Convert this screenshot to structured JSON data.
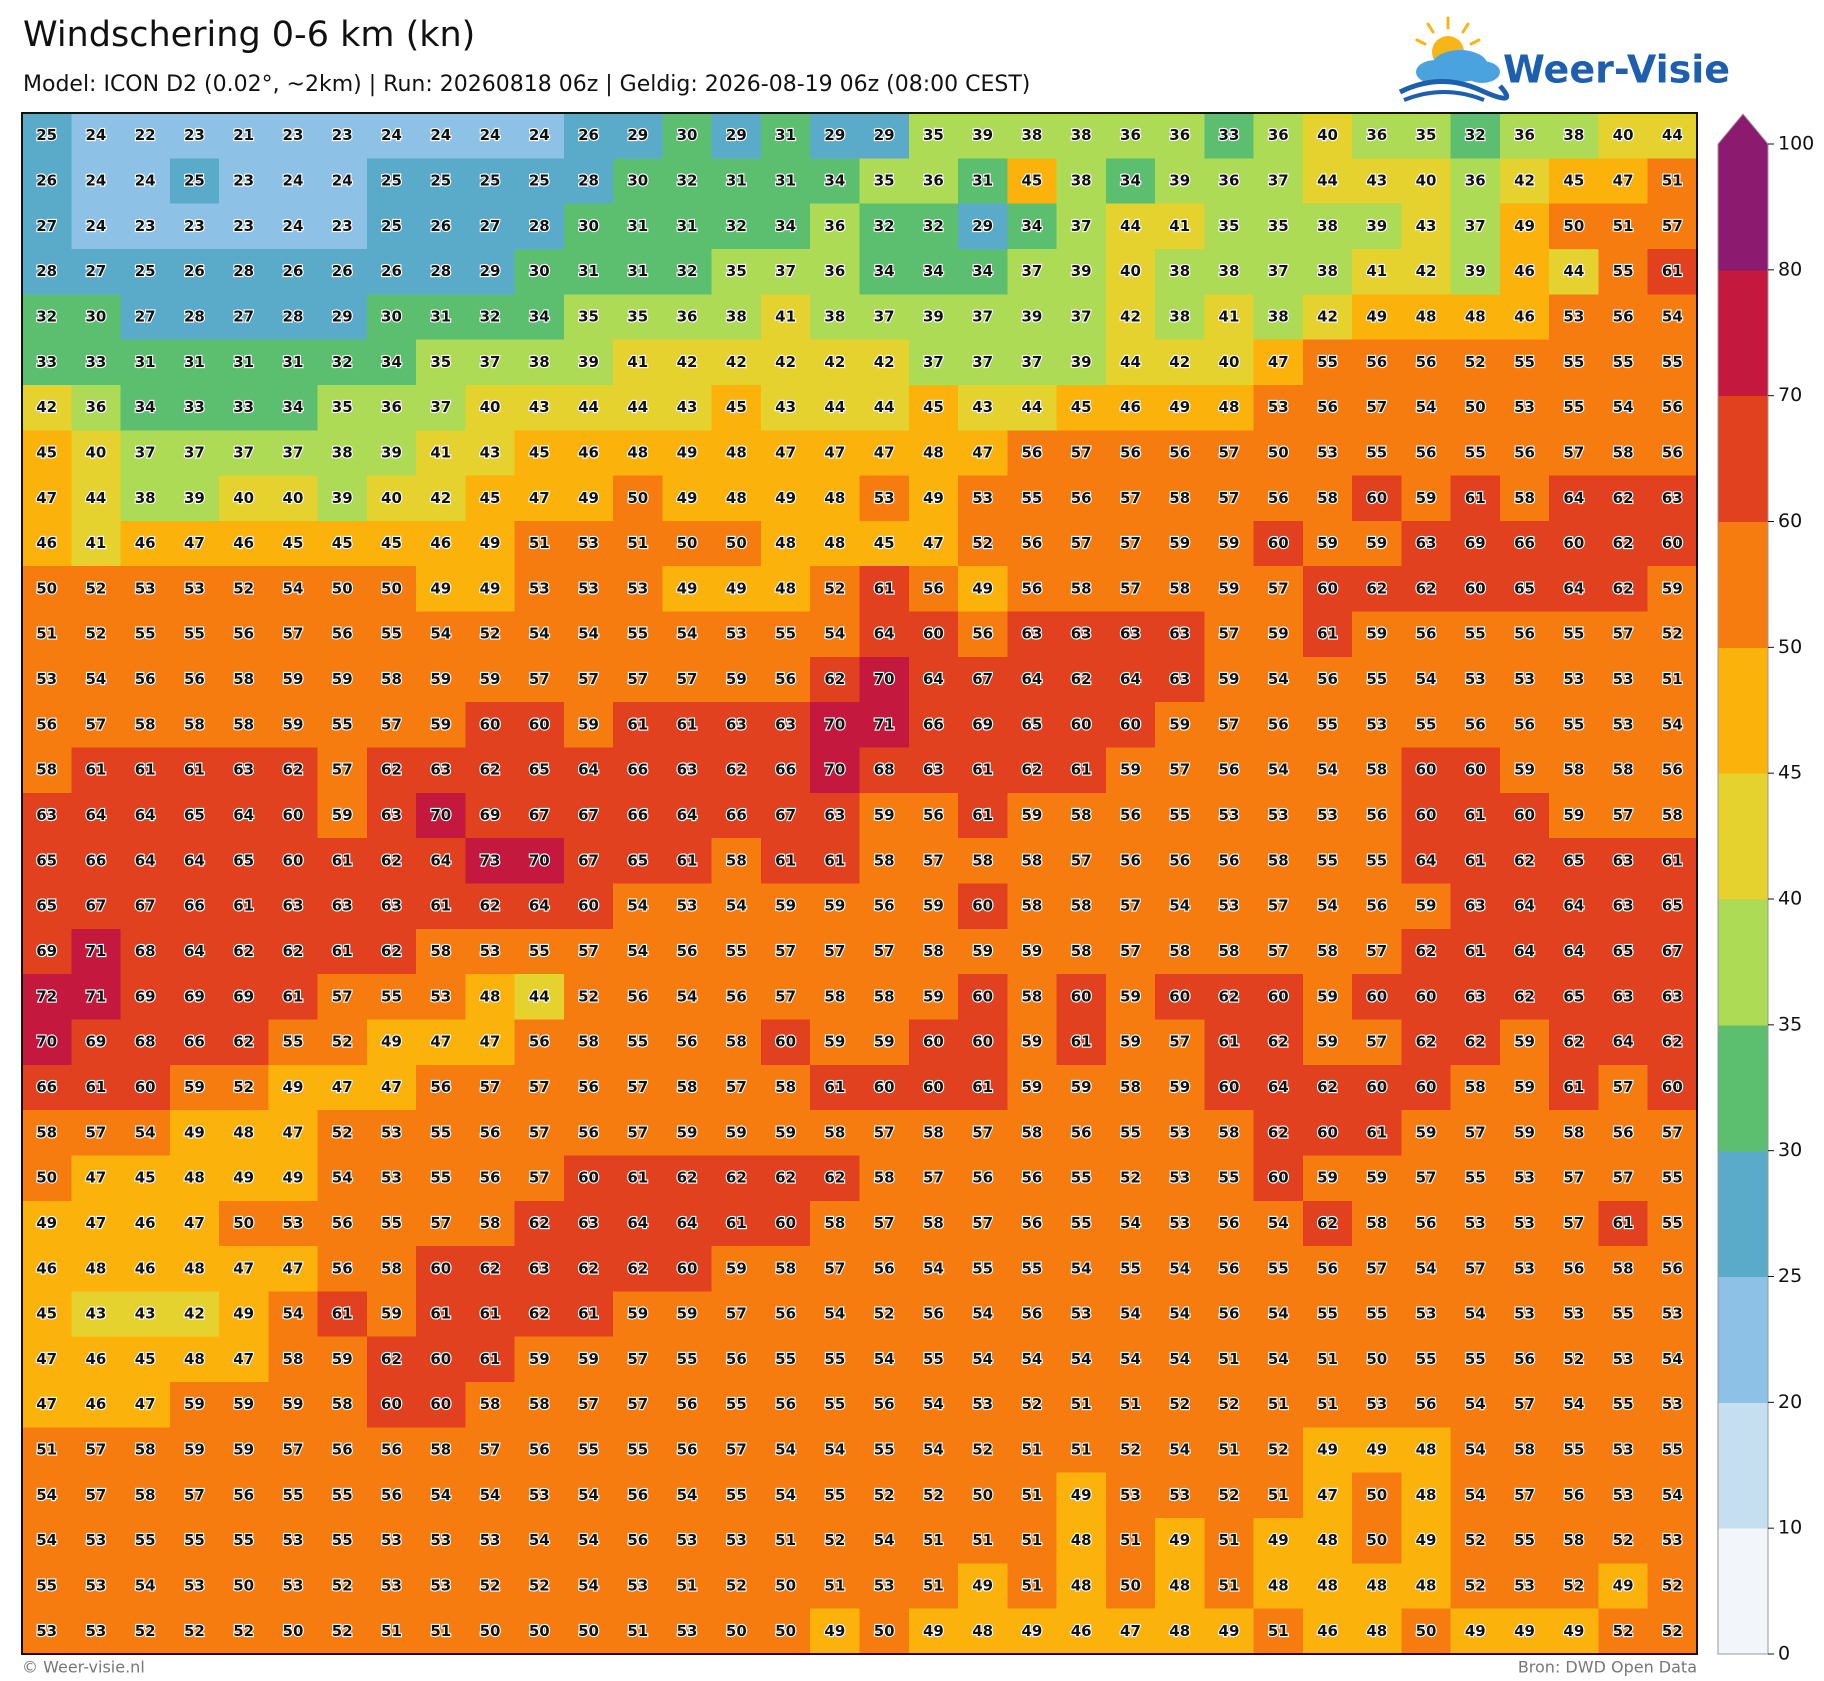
{
  "title": "Windschering 0-6 km (kn)",
  "subtitle": "Model: ICON D2 (0.02°, ~2km)  |  Run: 20260818 06z  |  Geldig: 2026-08-19 06z (08:00 CEST)",
  "logo": {
    "text": "Weer-Visie"
  },
  "footer": {
    "left": "© Weer-visie.nl",
    "right": "Bron: DWD Open Data"
  },
  "colorbar": {
    "ticks": [
      0,
      10,
      20,
      25,
      30,
      35,
      40,
      45,
      50,
      60,
      70,
      80,
      100
    ],
    "colors": [
      "#f2f5f9",
      "#c5dff0",
      "#8dc2e6",
      "#5aaac9",
      "#5cbf70",
      "#addb55",
      "#e5d22f",
      "#fbb30c",
      "#f77c0f",
      "#e2411f",
      "#c4183f",
      "#8c1a6e"
    ],
    "extend": "max"
  },
  "grid": {
    "rows": [
      [
        25,
        24,
        22,
        23,
        21,
        23,
        23,
        24,
        24,
        24,
        24,
        26,
        29,
        30,
        29,
        31,
        29,
        29,
        35,
        39,
        38,
        38,
        36,
        36,
        33,
        36,
        40,
        36,
        35,
        32,
        36,
        38,
        40,
        44
      ],
      [
        26,
        24,
        24,
        25,
        23,
        24,
        24,
        25,
        25,
        25,
        25,
        28,
        30,
        32,
        31,
        31,
        34,
        35,
        36,
        31,
        45,
        38,
        34,
        39,
        36,
        37,
        44,
        43,
        40,
        36,
        42,
        45,
        47,
        51
      ],
      [
        27,
        24,
        23,
        23,
        23,
        24,
        23,
        25,
        26,
        27,
        28,
        30,
        31,
        31,
        32,
        34,
        36,
        32,
        32,
        29,
        34,
        37,
        44,
        41,
        35,
        35,
        38,
        39,
        43,
        37,
        49,
        50,
        51,
        57
      ],
      [
        28,
        27,
        25,
        26,
        28,
        26,
        26,
        26,
        28,
        29,
        30,
        31,
        31,
        32,
        35,
        37,
        36,
        34,
        34,
        34,
        37,
        39,
        40,
        38,
        38,
        37,
        38,
        41,
        42,
        39,
        46,
        44,
        55,
        61
      ],
      [
        32,
        30,
        27,
        28,
        27,
        28,
        29,
        30,
        31,
        32,
        34,
        35,
        35,
        36,
        38,
        41,
        38,
        37,
        39,
        37,
        39,
        37,
        42,
        38,
        41,
        38,
        42,
        49,
        48,
        48,
        46,
        53,
        56,
        54
      ],
      [
        33,
        33,
        31,
        31,
        31,
        31,
        32,
        34,
        35,
        37,
        38,
        39,
        41,
        42,
        42,
        42,
        42,
        42,
        37,
        37,
        37,
        39,
        44,
        42,
        40,
        47,
        55,
        56,
        56,
        52,
        55,
        55,
        55,
        55
      ],
      [
        42,
        36,
        34,
        33,
        33,
        34,
        35,
        36,
        37,
        40,
        43,
        44,
        44,
        43,
        45,
        43,
        44,
        44,
        45,
        43,
        44,
        45,
        46,
        49,
        48,
        53,
        56,
        57,
        54,
        50,
        53,
        55,
        54,
        56
      ],
      [
        45,
        40,
        37,
        37,
        37,
        37,
        38,
        39,
        41,
        43,
        45,
        46,
        48,
        49,
        48,
        47,
        47,
        47,
        48,
        47,
        56,
        57,
        56,
        56,
        57,
        50,
        53,
        55,
        56,
        55,
        56,
        57,
        58,
        56
      ],
      [
        47,
        44,
        38,
        39,
        40,
        40,
        39,
        40,
        42,
        45,
        47,
        49,
        50,
        49,
        48,
        49,
        48,
        53,
        49,
        53,
        55,
        56,
        57,
        58,
        57,
        56,
        58,
        60,
        59,
        61,
        58,
        64,
        62,
        63
      ],
      [
        46,
        41,
        46,
        47,
        46,
        45,
        45,
        45,
        46,
        49,
        51,
        53,
        51,
        50,
        50,
        48,
        48,
        45,
        47,
        52,
        56,
        57,
        57,
        59,
        59,
        60,
        59,
        59,
        63,
        69,
        66,
        60,
        62,
        60
      ],
      [
        50,
        52,
        53,
        53,
        52,
        54,
        50,
        50,
        49,
        49,
        53,
        53,
        53,
        49,
        49,
        48,
        52,
        61,
        56,
        49,
        56,
        58,
        57,
        58,
        59,
        57,
        60,
        62,
        62,
        60,
        65,
        64,
        62,
        59
      ],
      [
        51,
        52,
        55,
        55,
        56,
        57,
        56,
        55,
        54,
        52,
        54,
        54,
        55,
        54,
        53,
        55,
        54,
        64,
        60,
        56,
        63,
        63,
        63,
        63,
        57,
        59,
        61,
        59,
        56,
        55,
        56,
        55,
        57,
        52
      ],
      [
        53,
        54,
        56,
        56,
        58,
        59,
        59,
        58,
        59,
        59,
        57,
        57,
        57,
        57,
        59,
        56,
        62,
        70,
        64,
        67,
        64,
        62,
        64,
        63,
        59,
        54,
        56,
        55,
        54,
        53,
        53,
        53,
        53,
        51
      ],
      [
        56,
        57,
        58,
        58,
        58,
        59,
        55,
        57,
        59,
        60,
        60,
        59,
        61,
        61,
        63,
        63,
        70,
        71,
        66,
        69,
        65,
        60,
        60,
        59,
        57,
        56,
        55,
        53,
        55,
        56,
        56,
        55,
        53,
        54
      ],
      [
        58,
        61,
        61,
        61,
        63,
        62,
        57,
        62,
        63,
        62,
        65,
        64,
        66,
        63,
        62,
        66,
        70,
        68,
        63,
        61,
        62,
        61,
        59,
        57,
        56,
        54,
        54,
        58,
        60,
        60,
        59,
        58,
        58,
        56
      ],
      [
        63,
        64,
        64,
        65,
        64,
        60,
        59,
        63,
        70,
        69,
        67,
        67,
        66,
        64,
        66,
        67,
        63,
        59,
        56,
        61,
        59,
        58,
        56,
        55,
        53,
        53,
        53,
        56,
        60,
        61,
        60,
        59,
        57,
        58
      ],
      [
        65,
        66,
        64,
        64,
        65,
        60,
        61,
        62,
        64,
        73,
        70,
        67,
        65,
        61,
        58,
        61,
        61,
        58,
        57,
        58,
        58,
        57,
        56,
        56,
        56,
        58,
        55,
        55,
        64,
        61,
        62,
        65,
        63,
        61
      ],
      [
        65,
        67,
        67,
        66,
        61,
        63,
        63,
        63,
        61,
        62,
        64,
        60,
        54,
        53,
        54,
        59,
        59,
        56,
        59,
        60,
        58,
        58,
        57,
        54,
        53,
        57,
        54,
        56,
        59,
        63,
        64,
        64,
        63,
        65
      ],
      [
        69,
        71,
        68,
        64,
        62,
        62,
        61,
        62,
        58,
        53,
        55,
        57,
        54,
        56,
        55,
        57,
        57,
        57,
        58,
        59,
        59,
        58,
        57,
        58,
        58,
        57,
        58,
        57,
        62,
        61,
        64,
        64,
        65,
        67
      ],
      [
        72,
        71,
        69,
        69,
        69,
        61,
        57,
        55,
        53,
        48,
        44,
        52,
        56,
        54,
        56,
        57,
        58,
        58,
        59,
        60,
        58,
        60,
        59,
        60,
        62,
        60,
        59,
        60,
        60,
        63,
        62,
        65,
        63,
        63
      ],
      [
        70,
        69,
        68,
        66,
        62,
        55,
        52,
        49,
        47,
        47,
        56,
        58,
        55,
        56,
        58,
        60,
        59,
        59,
        60,
        60,
        59,
        61,
        59,
        57,
        61,
        62,
        59,
        57,
        62,
        62,
        59,
        62,
        64,
        62
      ],
      [
        66,
        61,
        60,
        59,
        52,
        49,
        47,
        47,
        56,
        57,
        57,
        56,
        57,
        58,
        57,
        58,
        61,
        60,
        60,
        61,
        59,
        59,
        58,
        59,
        60,
        64,
        62,
        60,
        60,
        58,
        59,
        61,
        57,
        60
      ],
      [
        58,
        57,
        54,
        49,
        48,
        47,
        52,
        53,
        55,
        56,
        57,
        56,
        57,
        59,
        59,
        59,
        58,
        57,
        58,
        57,
        58,
        56,
        55,
        53,
        58,
        62,
        60,
        61,
        59,
        57,
        59,
        58,
        56,
        57
      ],
      [
        50,
        47,
        45,
        48,
        49,
        49,
        54,
        53,
        55,
        56,
        57,
        60,
        61,
        62,
        62,
        62,
        62,
        58,
        57,
        56,
        56,
        55,
        52,
        53,
        55,
        60,
        59,
        59,
        57,
        55,
        53,
        57,
        57,
        55
      ],
      [
        49,
        47,
        46,
        47,
        50,
        53,
        56,
        55,
        57,
        58,
        62,
        63,
        64,
        64,
        61,
        60,
        58,
        57,
        58,
        57,
        56,
        55,
        54,
        53,
        56,
        54,
        62,
        58,
        56,
        53,
        53,
        57,
        61,
        55
      ],
      [
        46,
        48,
        46,
        48,
        47,
        47,
        56,
        58,
        60,
        62,
        63,
        62,
        62,
        60,
        59,
        58,
        57,
        56,
        54,
        55,
        55,
        54,
        55,
        54,
        56,
        55,
        56,
        57,
        54,
        57,
        53,
        56,
        58,
        56
      ],
      [
        45,
        43,
        43,
        42,
        49,
        54,
        61,
        59,
        61,
        61,
        62,
        61,
        59,
        59,
        57,
        56,
        54,
        52,
        56,
        54,
        56,
        53,
        54,
        54,
        56,
        54,
        55,
        55,
        53,
        54,
        53,
        53,
        55,
        53
      ],
      [
        47,
        46,
        45,
        48,
        47,
        58,
        59,
        62,
        60,
        61,
        59,
        59,
        57,
        55,
        56,
        55,
        55,
        54,
        55,
        54,
        54,
        54,
        54,
        54,
        51,
        54,
        51,
        50,
        55,
        55,
        56,
        52,
        53,
        54
      ],
      [
        47,
        46,
        47,
        59,
        59,
        59,
        58,
        60,
        60,
        58,
        58,
        57,
        57,
        56,
        55,
        56,
        55,
        56,
        54,
        53,
        52,
        51,
        51,
        52,
        52,
        51,
        51,
        53,
        56,
        54,
        57,
        54,
        55,
        53
      ],
      [
        51,
        57,
        58,
        59,
        59,
        57,
        56,
        56,
        58,
        57,
        56,
        55,
        55,
        56,
        57,
        54,
        54,
        55,
        54,
        52,
        51,
        51,
        52,
        54,
        51,
        52,
        49,
        49,
        48,
        54,
        58,
        55,
        53,
        55
      ],
      [
        54,
        57,
        58,
        57,
        56,
        55,
        55,
        56,
        54,
        54,
        53,
        54,
        56,
        54,
        55,
        54,
        55,
        52,
        52,
        50,
        51,
        49,
        53,
        53,
        52,
        51,
        47,
        50,
        48,
        54,
        57,
        56,
        53,
        54
      ],
      [
        54,
        53,
        55,
        55,
        55,
        53,
        55,
        53,
        53,
        53,
        54,
        54,
        56,
        53,
        53,
        51,
        52,
        54,
        51,
        51,
        51,
        48,
        51,
        49,
        51,
        49,
        48,
        50,
        49,
        52,
        55,
        58,
        52,
        53
      ],
      [
        55,
        53,
        54,
        53,
        50,
        53,
        52,
        53,
        53,
        52,
        52,
        54,
        53,
        51,
        52,
        50,
        51,
        53,
        51,
        49,
        51,
        48,
        50,
        48,
        51,
        48,
        48,
        48,
        48,
        52,
        53,
        52,
        49,
        52
      ],
      [
        53,
        53,
        52,
        52,
        52,
        50,
        52,
        51,
        51,
        50,
        50,
        50,
        51,
        53,
        50,
        50,
        49,
        50,
        49,
        48,
        49,
        46,
        47,
        48,
        49,
        51,
        46,
        48,
        50,
        49,
        49,
        49,
        52,
        52
      ]
    ]
  }
}
